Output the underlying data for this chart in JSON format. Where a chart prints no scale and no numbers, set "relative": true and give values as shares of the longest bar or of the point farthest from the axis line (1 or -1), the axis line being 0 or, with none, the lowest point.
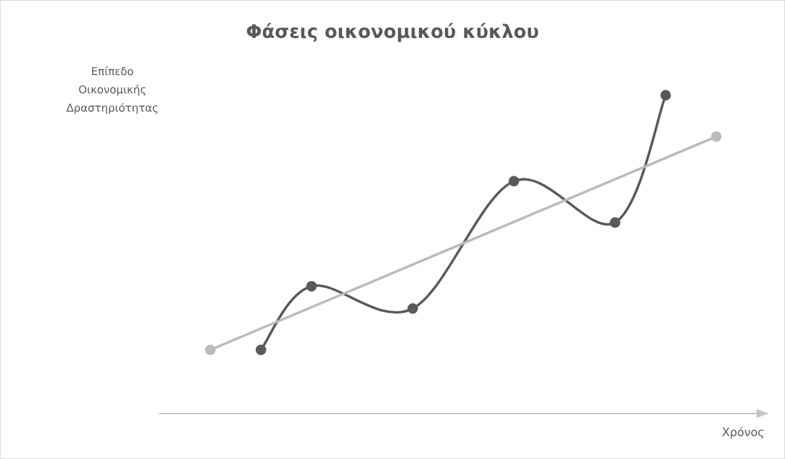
{
  "chart_data": {
    "type": "line",
    "title": "Φάσεις οικονομικού κύκλου",
    "xlabel": "Χρόνος",
    "ylabel": "Επίπεδο Οικονομικής Δραστηριότητας",
    "categories": [
      null,
      null,
      null,
      null,
      null,
      null,
      null,
      null,
      null,
      null,
      null
    ],
    "series": [
      {
        "color": "#595959",
        "values": [
          null,
          0.2,
          0.4,
          null,
          0.33,
          null,
          0.73,
          null,
          0.6,
          1,
          null
        ]
      },
      {
        "color": "#bbbbbb",
        "values": [
          0.2,
          null,
          null,
          null,
          null,
          null,
          null,
          null,
          null,
          null,
          0.87
        ]
      }
    ],
    "relative": true,
    "marker": "circle",
    "line_style": "solid"
  }
}
